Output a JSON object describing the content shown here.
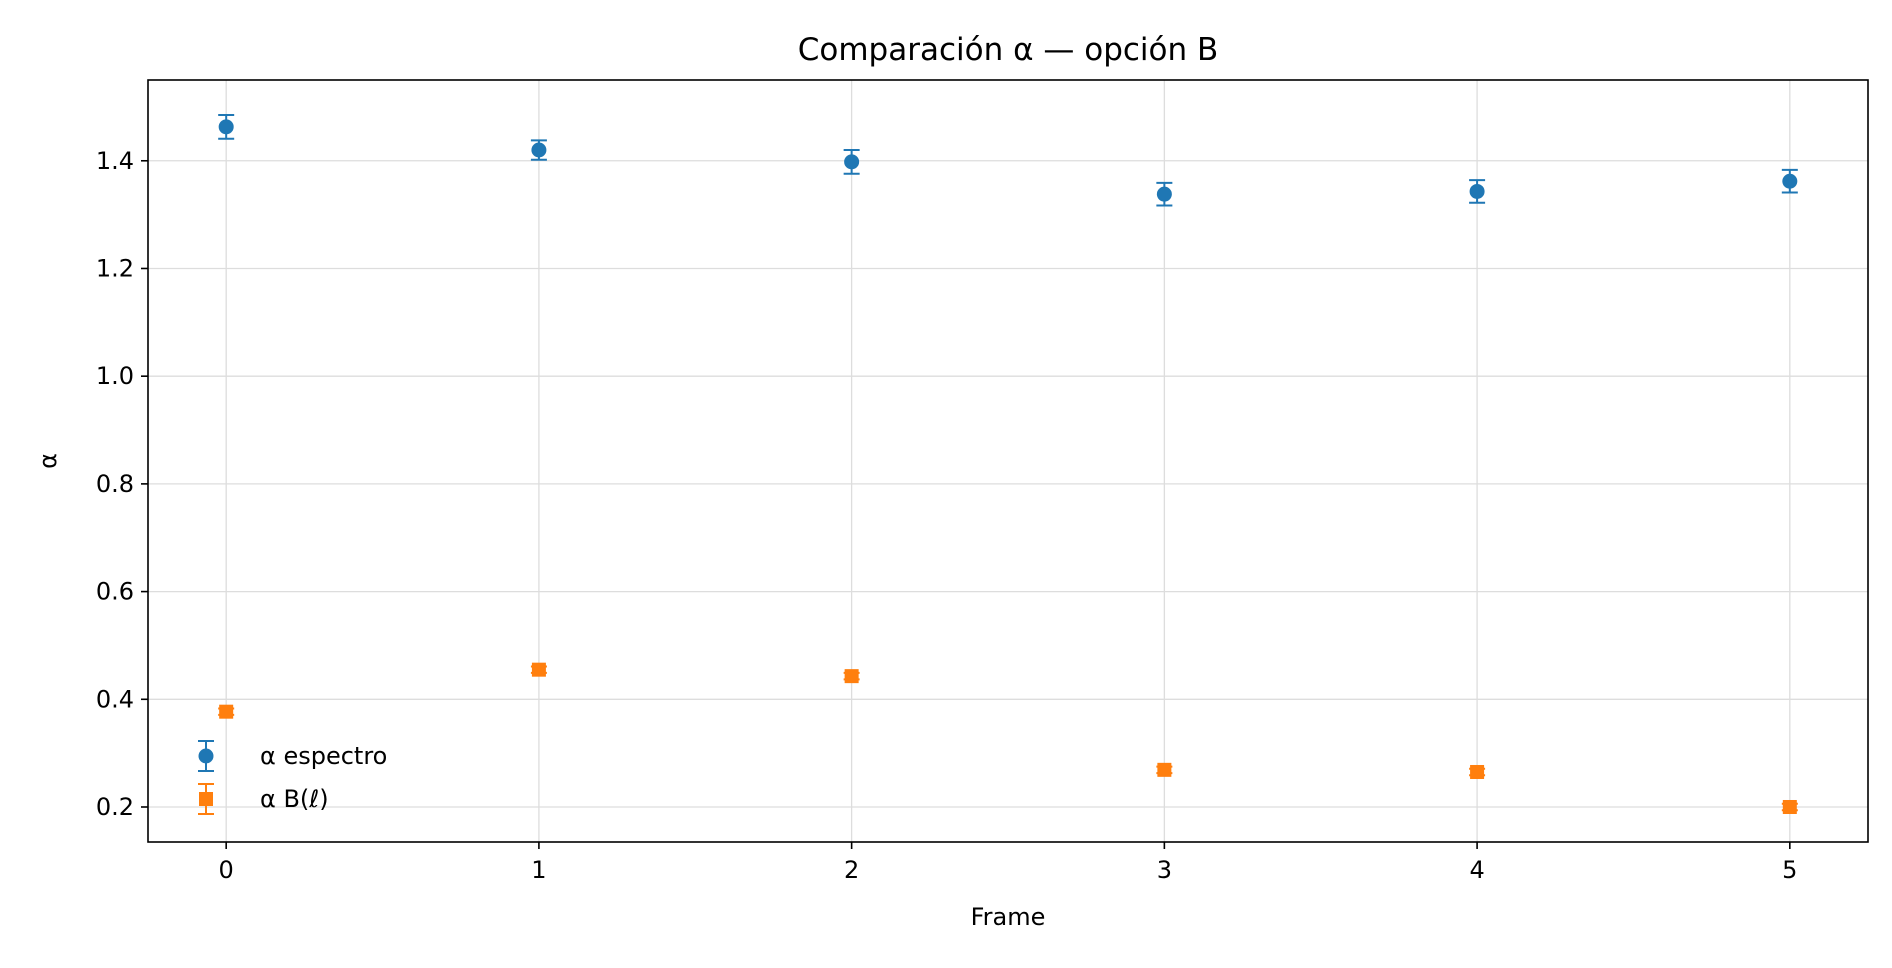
{
  "chart_data": {
    "type": "scatter",
    "title": "Comparación α — opción B",
    "xlabel": "Frame",
    "ylabel": "α",
    "xlim": [
      -0.25,
      5.25
    ],
    "ylim": [
      0.135,
      1.55
    ],
    "x_ticks": [
      0,
      1,
      2,
      3,
      4,
      5
    ],
    "y_ticks": [
      0.2,
      0.4,
      0.6,
      0.8,
      1.0,
      1.2,
      1.4
    ],
    "y_tick_labels": [
      "0.2",
      "0.4",
      "0.6",
      "0.8",
      "1.0",
      "1.2",
      "1.4"
    ],
    "x_tick_labels": [
      "0",
      "1",
      "2",
      "3",
      "4",
      "5"
    ],
    "grid": true,
    "legend_position": "lower-left",
    "series": [
      {
        "name": "α espectro",
        "marker": "circle",
        "color": "#1f77b4",
        "x": [
          0,
          1,
          2,
          3,
          4,
          5
        ],
        "y": [
          1.463,
          1.42,
          1.398,
          1.338,
          1.343,
          1.362
        ],
        "yerr": [
          0.022,
          0.018,
          0.022,
          0.021,
          0.021,
          0.021
        ]
      },
      {
        "name": "α B(ℓ)",
        "marker": "square",
        "color": "#ff7f0e",
        "x": [
          0,
          1,
          2,
          3,
          4,
          5
        ],
        "y": [
          0.377,
          0.455,
          0.443,
          0.269,
          0.265,
          0.2
        ],
        "yerr": [
          0.006,
          0.006,
          0.006,
          0.006,
          0.006,
          0.006
        ]
      }
    ]
  }
}
